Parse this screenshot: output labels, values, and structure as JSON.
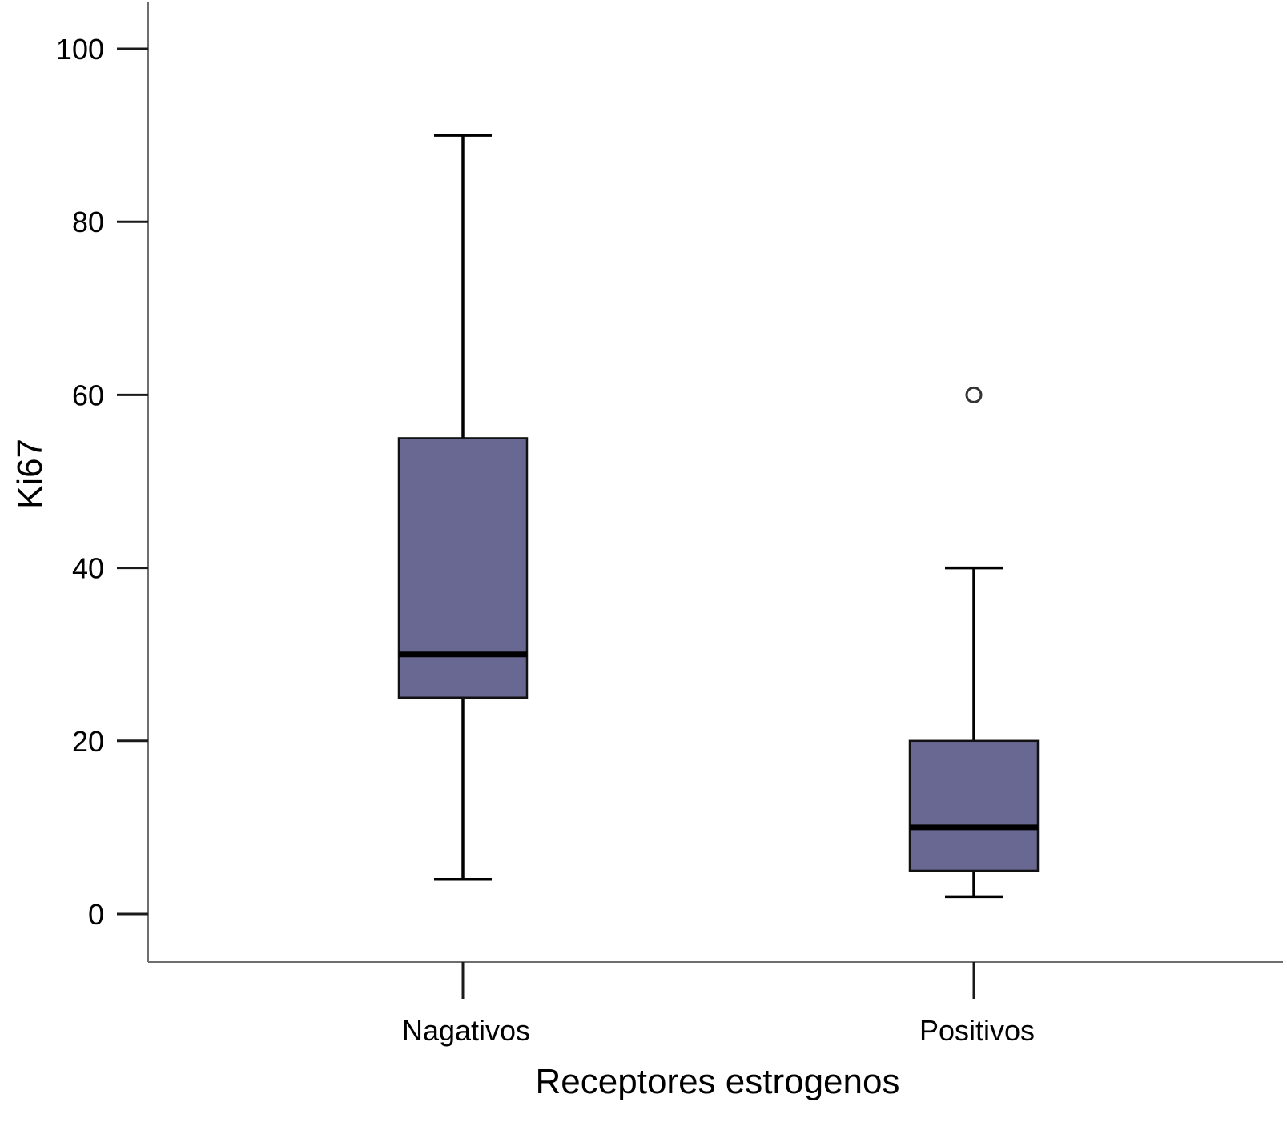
{
  "chart_data": {
    "type": "boxplot",
    "xlabel": "Receptores estrogenos",
    "ylabel": "Ki67",
    "ylim": [
      -11,
      110
    ],
    "yticks": [
      0,
      20,
      40,
      60,
      80,
      100
    ],
    "categories": [
      "Nagativos",
      "Positivos"
    ],
    "boxes": [
      {
        "category": "Nagativos",
        "whisker_low": 4,
        "q1": 25,
        "median": 30,
        "q3": 55,
        "whisker_high": 90,
        "outliers": []
      },
      {
        "category": "Positivos",
        "whisker_low": 2,
        "q1": 5,
        "median": 10,
        "q3": 20,
        "whisker_high": 40,
        "outliers": [
          60
        ]
      }
    ],
    "box_color": "#686892",
    "grid": false,
    "legend": "none"
  }
}
